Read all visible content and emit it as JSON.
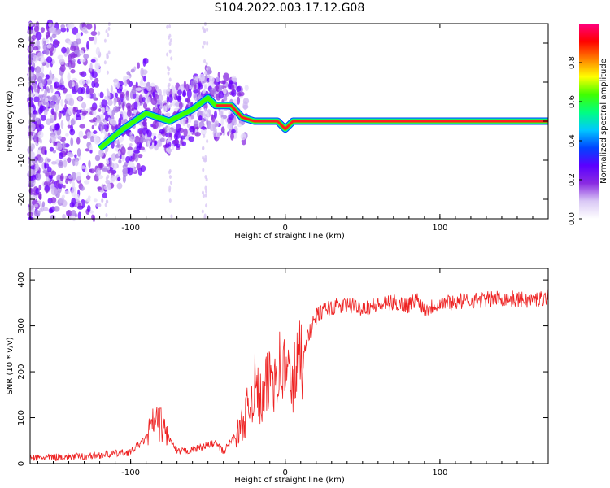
{
  "title": "S104.2022.003.17.12.G08",
  "chart_data": [
    {
      "type": "heatmap",
      "xlabel": "Height of straight line (km)",
      "ylabel": "Frequency (Hz)",
      "xlim": [
        -165,
        170
      ],
      "ylim": [
        -25,
        25
      ],
      "xticks": [
        -100,
        0,
        100
      ],
      "yticks": [
        -20,
        -10,
        0,
        10,
        20
      ],
      "colorbar": {
        "label": "Normalized spectral amplitude",
        "range": [
          0,
          1
        ],
        "ticks": [
          0.0,
          0.2,
          0.4,
          0.6,
          0.8
        ],
        "colors": [
          "#ffffff",
          "#d9c8f5",
          "#8a2be2",
          "#5a00ff",
          "#0044ff",
          "#00c8ff",
          "#00ff80",
          "#40ff00",
          "#ffff00",
          "#ff8000",
          "#ff0000",
          "#ff0080"
        ]
      },
      "ridge": [
        {
          "x": -120,
          "y": -7
        },
        {
          "x": -105,
          "y": -2
        },
        {
          "x": -90,
          "y": 2
        },
        {
          "x": -75,
          "y": 0
        },
        {
          "x": -60,
          "y": 3
        },
        {
          "x": -50,
          "y": 6
        },
        {
          "x": -45,
          "y": 4
        },
        {
          "x": -35,
          "y": 4
        },
        {
          "x": -28,
          "y": 1
        },
        {
          "x": -20,
          "y": 0
        },
        {
          "x": -5,
          "y": 0
        },
        {
          "x": 0,
          "y": -2
        },
        {
          "x": 5,
          "y": 0
        },
        {
          "x": 20,
          "y": 0
        },
        {
          "x": 170,
          "y": 0
        }
      ]
    },
    {
      "type": "line",
      "xlabel": "Height of straight line (km)",
      "ylabel": "SNR (10 * v/v)",
      "xlim": [
        -165,
        170
      ],
      "ylim": [
        0,
        425
      ],
      "xticks": [
        -100,
        0,
        100
      ],
      "yticks": [
        0,
        100,
        200,
        300,
        400
      ],
      "color": "#ee2222",
      "series": [
        {
          "x": [
            -165,
            -150,
            -130,
            -115,
            -100,
            -90,
            -85,
            -80,
            -75,
            -70,
            -60,
            -50,
            -45,
            -40,
            -35,
            -30,
            -25,
            -20,
            -15,
            -10,
            -5,
            0,
            5,
            10,
            15,
            20,
            25,
            30,
            40,
            50,
            60,
            70,
            80,
            85,
            90,
            100,
            120,
            140,
            160,
            170
          ],
          "values": [
            12,
            14,
            16,
            20,
            25,
            55,
            90,
            85,
            55,
            25,
            30,
            40,
            45,
            25,
            50,
            70,
            110,
            170,
            130,
            190,
            210,
            200,
            180,
            230,
            280,
            320,
            335,
            340,
            345,
            340,
            345,
            350,
            345,
            360,
            335,
            350,
            355,
            360,
            355,
            365
          ]
        }
      ]
    }
  ]
}
